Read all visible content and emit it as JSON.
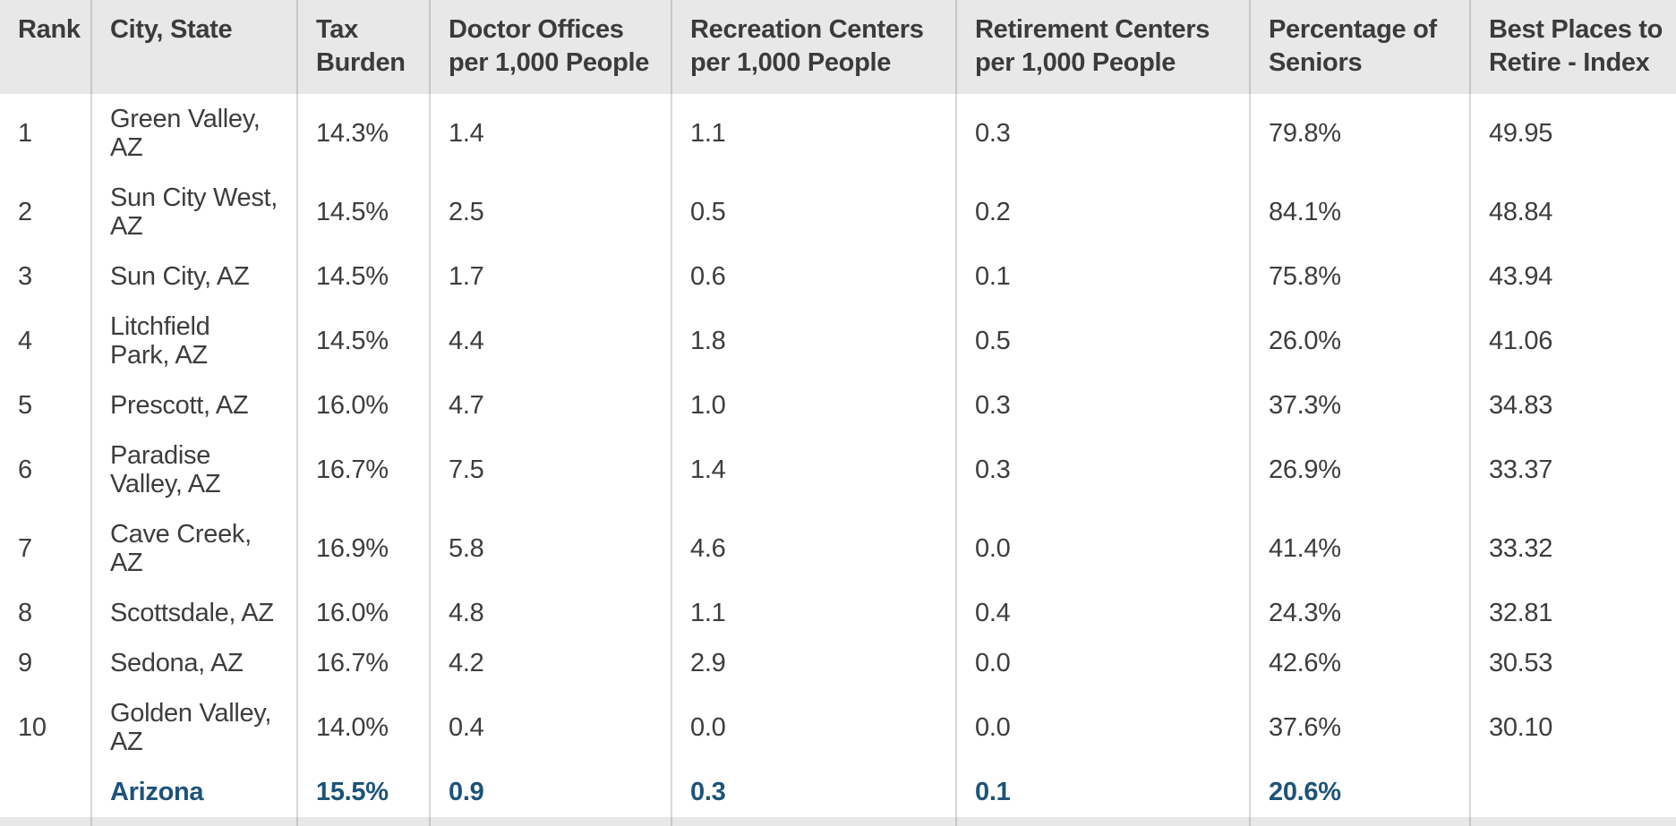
{
  "colors": {
    "header_bg": "#e8e8e8",
    "header_text": "#3b3b3b",
    "body_text": "#3d3d3d",
    "summary_text": "#1d5379",
    "header_divider": "#c7c7c7",
    "body_divider": "#d8d8d8",
    "background": "#ffffff"
  },
  "ui": {
    "table": {
      "columns": [
        {
          "key": "rank",
          "label": "Rank"
        },
        {
          "key": "city-state",
          "label": "City, State"
        },
        {
          "key": "tax-burden",
          "label": "Tax\nBurden"
        },
        {
          "key": "doctor-offices",
          "label": "Doctor Offices\nper 1,000 People"
        },
        {
          "key": "recreation-centers",
          "label": "Recreation Centers\nper 1,000 People"
        },
        {
          "key": "retirement-centers",
          "label": "Retirement Centers\nper 1,000 People"
        },
        {
          "key": "percentage-of-seniors",
          "label": "Percentage of\nSeniors"
        },
        {
          "key": "best-places-index",
          "label": "Best Places to\nRetire - Index"
        }
      ],
      "rows": [
        {
          "cells": [
            "1",
            "Green Valley,\nAZ",
            "14.3%",
            "1.4",
            "1.1",
            "0.3",
            "79.8%",
            "49.95"
          ]
        },
        {
          "cells": [
            "2",
            "Sun City West,\nAZ",
            "14.5%",
            "2.5",
            "0.5",
            "0.2",
            "84.1%",
            "48.84"
          ]
        },
        {
          "cells": [
            "3",
            "Sun City, AZ",
            "14.5%",
            "1.7",
            "0.6",
            "0.1",
            "75.8%",
            "43.94"
          ]
        },
        {
          "cells": [
            "4",
            "Litchfield\nPark, AZ",
            "14.5%",
            "4.4",
            "1.8",
            "0.5",
            "26.0%",
            "41.06"
          ]
        },
        {
          "cells": [
            "5",
            "Prescott, AZ",
            "16.0%",
            "4.7",
            "1.0",
            "0.3",
            "37.3%",
            "34.83"
          ]
        },
        {
          "cells": [
            "6",
            "Paradise\nValley, AZ",
            "16.7%",
            "7.5",
            "1.4",
            "0.3",
            "26.9%",
            "33.37"
          ]
        },
        {
          "cells": [
            "7",
            "Cave Creek,\nAZ",
            "16.9%",
            "5.8",
            "4.6",
            "0.0",
            "41.4%",
            "33.32"
          ]
        },
        {
          "cells": [
            "8",
            "Scottsdale, AZ",
            "16.0%",
            "4.8",
            "1.1",
            "0.4",
            "24.3%",
            "32.81"
          ]
        },
        {
          "cells": [
            "9",
            "Sedona, AZ",
            "16.7%",
            "4.2",
            "2.9",
            "0.0",
            "42.6%",
            "30.53"
          ]
        },
        {
          "cells": [
            "10",
            "Golden Valley,\nAZ",
            "14.0%",
            "0.4",
            "0.0",
            "0.0",
            "37.6%",
            "30.10"
          ]
        },
        {
          "cells": [
            "",
            "Arizona",
            "15.5%",
            "0.9",
            "0.3",
            "0.1",
            "20.6%",
            ""
          ],
          "summary": true
        }
      ]
    }
  },
  "chart_data": {
    "type": "table",
    "columns": [
      "Rank",
      "City, State",
      "Tax Burden",
      "Doctor Offices per 1,000 People",
      "Recreation Centers per 1,000 People",
      "Retirement Centers per 1,000 People",
      "Percentage of Seniors",
      "Best Places to Retire - Index"
    ],
    "rows": [
      [
        1,
        "Green Valley, AZ",
        "14.3%",
        1.4,
        1.1,
        0.3,
        "79.8%",
        49.95
      ],
      [
        2,
        "Sun City West, AZ",
        "14.5%",
        2.5,
        0.5,
        0.2,
        "84.1%",
        48.84
      ],
      [
        3,
        "Sun City, AZ",
        "14.5%",
        1.7,
        0.6,
        0.1,
        "75.8%",
        43.94
      ],
      [
        4,
        "Litchfield Park, AZ",
        "14.5%",
        4.4,
        1.8,
        0.5,
        "26.0%",
        41.06
      ],
      [
        5,
        "Prescott, AZ",
        "16.0%",
        4.7,
        1.0,
        0.3,
        "37.3%",
        34.83
      ],
      [
        6,
        "Paradise Valley, AZ",
        "16.7%",
        7.5,
        1.4,
        0.3,
        "26.9%",
        33.37
      ],
      [
        7,
        "Cave Creek, AZ",
        "16.9%",
        5.8,
        4.6,
        0.0,
        "41.4%",
        33.32
      ],
      [
        8,
        "Scottsdale, AZ",
        "16.0%",
        4.8,
        1.1,
        0.4,
        "24.3%",
        32.81
      ],
      [
        9,
        "Sedona, AZ",
        "16.7%",
        4.2,
        2.9,
        0.0,
        "42.6%",
        30.53
      ],
      [
        10,
        "Golden Valley, AZ",
        "14.0%",
        0.4,
        0.0,
        0.0,
        "37.6%",
        30.1
      ],
      [
        null,
        "Arizona",
        "15.5%",
        0.9,
        0.3,
        0.1,
        "20.6%",
        null
      ]
    ]
  }
}
